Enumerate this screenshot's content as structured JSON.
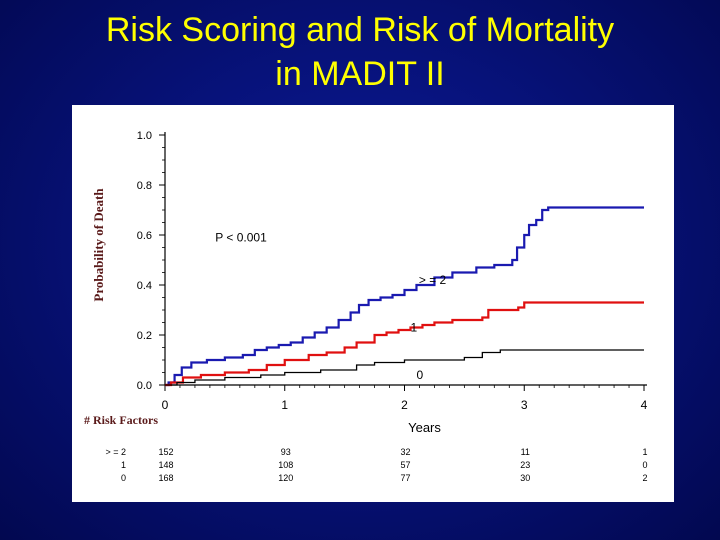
{
  "slide": {
    "title_line1": "Risk Scoring and Risk of Mortality",
    "title_line2": "in MADIT II"
  },
  "colors": {
    "title": "#ffff00",
    "background": "#07127a",
    "series_ge2": "#1a1ab0",
    "series_1": "#e01010",
    "series_0": "#000000"
  },
  "chart_data": {
    "type": "line",
    "title": "",
    "xlabel": "Years",
    "ylabel": "Probability of Death",
    "xlim": [
      0,
      4
    ],
    "ylim": [
      0,
      1
    ],
    "x_ticks": [
      "0",
      "1",
      "2",
      "3",
      "4"
    ],
    "y_ticks": [
      "0.0",
      "0.2",
      "0.4",
      "0.6",
      "0.8",
      "1.0"
    ],
    "annotation": "P < 0.001",
    "series": [
      {
        "name": ">=2",
        "label": "> = 2",
        "color": "#1a1ab0",
        "points": [
          [
            0,
            0
          ],
          [
            0.03,
            0.01
          ],
          [
            0.08,
            0.04
          ],
          [
            0.14,
            0.07
          ],
          [
            0.22,
            0.09
          ],
          [
            0.35,
            0.1
          ],
          [
            0.5,
            0.11
          ],
          [
            0.65,
            0.12
          ],
          [
            0.75,
            0.14
          ],
          [
            0.85,
            0.15
          ],
          [
            0.95,
            0.16
          ],
          [
            1.05,
            0.17
          ],
          [
            1.15,
            0.19
          ],
          [
            1.25,
            0.21
          ],
          [
            1.35,
            0.23
          ],
          [
            1.45,
            0.26
          ],
          [
            1.55,
            0.29
          ],
          [
            1.62,
            0.32
          ],
          [
            1.7,
            0.34
          ],
          [
            1.8,
            0.35
          ],
          [
            1.9,
            0.36
          ],
          [
            2.0,
            0.38
          ],
          [
            2.1,
            0.4
          ],
          [
            2.25,
            0.43
          ],
          [
            2.4,
            0.45
          ],
          [
            2.6,
            0.47
          ],
          [
            2.75,
            0.48
          ],
          [
            2.9,
            0.5
          ],
          [
            2.94,
            0.55
          ],
          [
            3.0,
            0.6
          ],
          [
            3.04,
            0.64
          ],
          [
            3.1,
            0.66
          ],
          [
            3.15,
            0.7
          ],
          [
            3.2,
            0.71
          ],
          [
            4.0,
            0.71
          ]
        ]
      },
      {
        "name": "1",
        "label": "1",
        "color": "#e01010",
        "points": [
          [
            0,
            0
          ],
          [
            0.05,
            0.01
          ],
          [
            0.15,
            0.03
          ],
          [
            0.3,
            0.04
          ],
          [
            0.5,
            0.05
          ],
          [
            0.7,
            0.06
          ],
          [
            0.85,
            0.08
          ],
          [
            1.0,
            0.1
          ],
          [
            1.2,
            0.12
          ],
          [
            1.35,
            0.13
          ],
          [
            1.5,
            0.15
          ],
          [
            1.6,
            0.17
          ],
          [
            1.75,
            0.2
          ],
          [
            1.85,
            0.21
          ],
          [
            1.95,
            0.22
          ],
          [
            2.05,
            0.23
          ],
          [
            2.15,
            0.24
          ],
          [
            2.25,
            0.25
          ],
          [
            2.4,
            0.26
          ],
          [
            2.65,
            0.27
          ],
          [
            2.7,
            0.3
          ],
          [
            2.95,
            0.31
          ],
          [
            3.0,
            0.33
          ],
          [
            4.0,
            0.33
          ]
        ]
      },
      {
        "name": "0",
        "label": "0",
        "color": "#000000",
        "points": [
          [
            0,
            0
          ],
          [
            0.1,
            0.01
          ],
          [
            0.25,
            0.02
          ],
          [
            0.5,
            0.03
          ],
          [
            0.8,
            0.04
          ],
          [
            1.0,
            0.05
          ],
          [
            1.3,
            0.06
          ],
          [
            1.6,
            0.08
          ],
          [
            1.75,
            0.09
          ],
          [
            2.0,
            0.1
          ],
          [
            2.5,
            0.11
          ],
          [
            2.65,
            0.13
          ],
          [
            2.8,
            0.14
          ],
          [
            4.0,
            0.14
          ]
        ]
      }
    ],
    "risk_table": {
      "header": "# Risk Factors",
      "rows": [
        {
          "label": "> = 2",
          "values": [
            "152",
            "93",
            "32",
            "11",
            "1"
          ]
        },
        {
          "label": "1",
          "values": [
            "148",
            "108",
            "57",
            "23",
            "0"
          ]
        },
        {
          "label": "0",
          "values": [
            "168",
            "120",
            "77",
            "30",
            "2"
          ]
        }
      ]
    }
  }
}
